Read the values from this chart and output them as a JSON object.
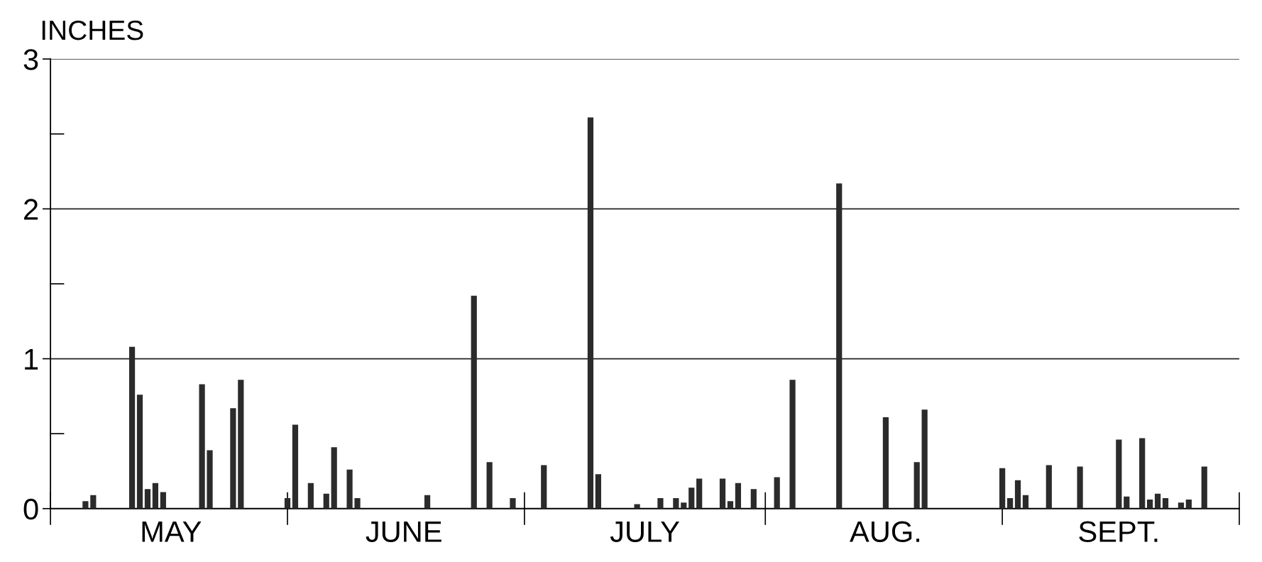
{
  "chart_data": {
    "type": "bar",
    "ylabel": "INCHES",
    "categories": [
      null,
      null,
      null,
      null,
      null,
      null,
      null,
      null,
      null,
      null,
      null,
      null,
      null,
      null,
      null,
      "MAY",
      null,
      null,
      null,
      null,
      null,
      null,
      null,
      null,
      null,
      null,
      null,
      null,
      null,
      null,
      null,
      null,
      null,
      null,
      null,
      null,
      null,
      null,
      null,
      null,
      null,
      null,
      null,
      null,
      null,
      "JUNE",
      null,
      null,
      null,
      null,
      null,
      null,
      null,
      null,
      null,
      null,
      null,
      null,
      null,
      null,
      null,
      null,
      null,
      null,
      null,
      null,
      null,
      null,
      null,
      null,
      null,
      null,
      null,
      null,
      null,
      null,
      "JULY",
      null,
      null,
      null,
      null,
      null,
      null,
      null,
      null,
      null,
      null,
      null,
      null,
      null,
      null,
      null,
      null,
      null,
      null,
      null,
      null,
      null,
      null,
      null,
      null,
      null,
      null,
      null,
      null,
      null,
      null,
      "AUG.",
      null,
      null,
      null,
      null,
      null,
      null,
      null,
      null,
      null,
      null,
      null,
      null,
      null,
      null,
      null,
      null,
      null,
      null,
      null,
      null,
      null,
      null,
      null,
      null,
      null,
      null,
      null,
      null,
      null,
      "SEPT.",
      null,
      null,
      null,
      null,
      null,
      null,
      null,
      null,
      null,
      null,
      null,
      null,
      null,
      null,
      null
    ],
    "values": [
      null,
      null,
      null,
      null,
      0.05,
      0.09,
      null,
      null,
      null,
      null,
      1.08,
      0.76,
      0.13,
      0.17,
      0.11,
      null,
      null,
      null,
      null,
      0.83,
      0.39,
      null,
      null,
      0.67,
      0.86,
      null,
      null,
      null,
      null,
      null,
      0.07,
      0.56,
      null,
      0.17,
      null,
      0.1,
      0.41,
      null,
      0.26,
      0.07,
      null,
      null,
      null,
      null,
      null,
      null,
      null,
      null,
      0.09,
      null,
      null,
      null,
      null,
      null,
      1.42,
      null,
      0.31,
      null,
      null,
      0.07,
      null,
      null,
      null,
      0.29,
      null,
      null,
      null,
      null,
      null,
      2.61,
      0.23,
      null,
      null,
      null,
      null,
      0.03,
      null,
      null,
      0.07,
      null,
      0.07,
      0.04,
      0.14,
      0.2,
      null,
      null,
      0.2,
      0.05,
      0.17,
      null,
      0.13,
      null,
      null,
      0.21,
      null,
      0.86,
      null,
      null,
      null,
      null,
      null,
      2.17,
      null,
      null,
      null,
      null,
      null,
      0.61,
      null,
      null,
      null,
      0.31,
      0.66,
      null,
      null,
      null,
      null,
      null,
      null,
      null,
      null,
      null,
      0.27,
      0.07,
      0.19,
      0.09,
      null,
      null,
      0.29,
      null,
      null,
      null,
      0.28,
      null,
      null,
      null,
      null,
      0.46,
      0.08,
      null,
      0.47,
      0.06,
      0.1,
      0.07,
      null,
      0.04,
      0.06,
      null,
      0.28,
      null,
      null,
      null,
      null
    ],
    "color": "#2b2b2b",
    "ylim": [
      0,
      3
    ],
    "yticks": [
      0,
      1,
      2,
      3
    ],
    "grid": "y"
  }
}
